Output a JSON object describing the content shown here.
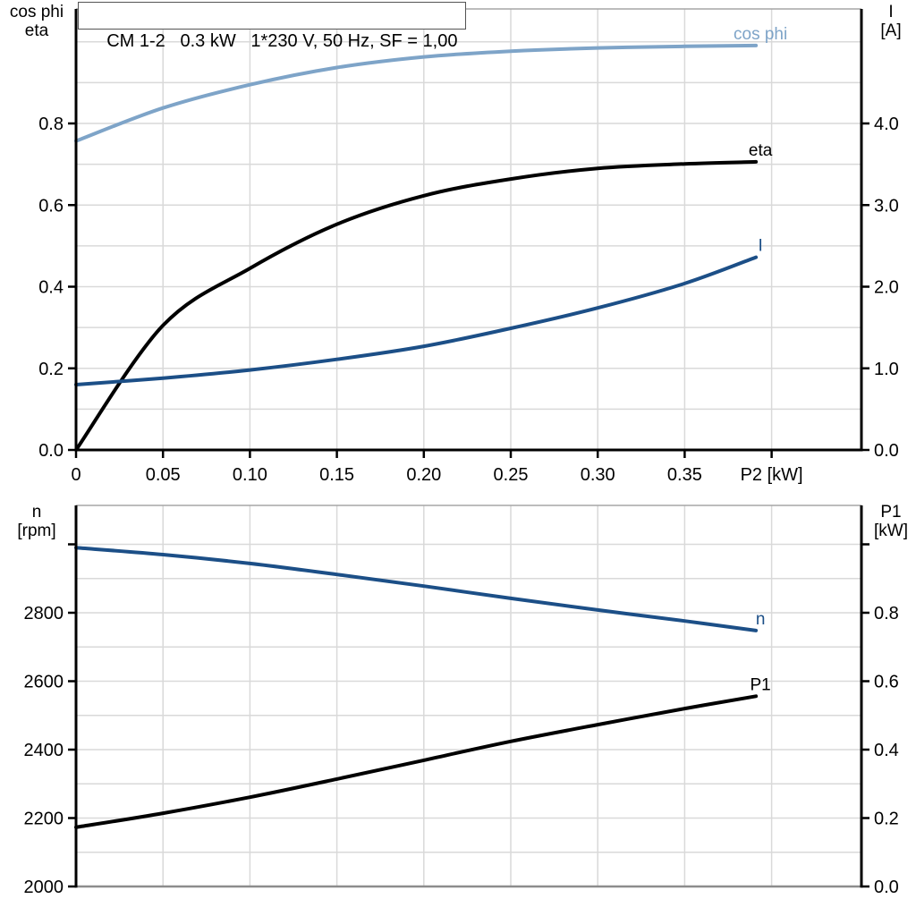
{
  "title_box": {
    "text": "CM 1-2   0.3 kW   1*230 V, 50 Hz, SF = 1,00"
  },
  "colors": {
    "dark_blue": "#1c4f87",
    "light_blue": "#7ea4c8",
    "black": "#000000",
    "grid": "#d9d9d9",
    "frame_gray": "#a6a6a6",
    "bottom_axis_gray": "#8c8c8c"
  },
  "chart_data": [
    {
      "type": "line",
      "title": "CM 1-2   0.3 kW   1*230 V, 50 Hz, SF = 1,00",
      "xlabel": "P2 [kW]",
      "ylabel_left_lines": [
        "cos phi",
        "eta"
      ],
      "ylabel_right_lines": [
        "I",
        "[A]"
      ],
      "xlim": [
        0,
        0.452
      ],
      "ylim_left": [
        0,
        1.08
      ],
      "ylim_right": [
        0,
        5.4
      ],
      "grid": true,
      "legend_position": "end-of-curve-labels",
      "x_ticks": [
        {
          "v": 0.0,
          "label": "0"
        },
        {
          "v": 0.05,
          "label": "0.05"
        },
        {
          "v": 0.1,
          "label": "0.10"
        },
        {
          "v": 0.15,
          "label": "0.15"
        },
        {
          "v": 0.2,
          "label": "0.20"
        },
        {
          "v": 0.25,
          "label": "0.25"
        },
        {
          "v": 0.3,
          "label": "0.30"
        },
        {
          "v": 0.35,
          "label": "0.35"
        },
        {
          "v": 0.4,
          "label": ""
        }
      ],
      "y_ticks_left": [
        {
          "v": 0.0,
          "label": "0.0"
        },
        {
          "v": 0.2,
          "label": "0.2"
        },
        {
          "v": 0.4,
          "label": "0.4"
        },
        {
          "v": 0.6,
          "label": "0.6"
        },
        {
          "v": 0.8,
          "label": "0.8"
        }
      ],
      "y_ticks_right": [
        {
          "v": 0.0,
          "label": "0.0"
        },
        {
          "v": 1.0,
          "label": "1.0"
        },
        {
          "v": 2.0,
          "label": "2.0"
        },
        {
          "v": 3.0,
          "label": "3.0"
        },
        {
          "v": 4.0,
          "label": "4.0"
        }
      ],
      "x": [
        0,
        0.05,
        0.1,
        0.15,
        0.2,
        0.25,
        0.3,
        0.35,
        0.391
      ],
      "series": [
        {
          "name": "cos phi",
          "axis": "left",
          "color": "light_blue",
          "values": [
            0.757,
            0.838,
            0.895,
            0.937,
            0.963,
            0.977,
            0.985,
            0.989,
            0.991
          ]
        },
        {
          "name": "eta",
          "axis": "left",
          "color": "black",
          "values": [
            0.0,
            0.305,
            0.445,
            0.553,
            0.623,
            0.664,
            0.69,
            0.701,
            0.706
          ]
        },
        {
          "name": "I",
          "axis": "right",
          "color": "dark_blue",
          "values": [
            0.8,
            0.88,
            0.98,
            1.11,
            1.27,
            1.49,
            1.74,
            2.04,
            2.36
          ]
        }
      ]
    },
    {
      "type": "line",
      "title": "",
      "xlabel": "",
      "ylabel_left_lines": [
        "n",
        "[rpm]"
      ],
      "ylabel_right_lines": [
        "P1",
        "[kW]"
      ],
      "xlim": [
        0,
        0.452
      ],
      "ylim_left": [
        2000,
        3114
      ],
      "ylim_right": [
        0,
        1.114
      ],
      "grid": true,
      "legend_position": "end-of-curve-labels",
      "y_ticks_left": [
        {
          "v": 2000,
          "label": "2000"
        },
        {
          "v": 2200,
          "label": "2200"
        },
        {
          "v": 2400,
          "label": "2400"
        },
        {
          "v": 2600,
          "label": "2600"
        },
        {
          "v": 2800,
          "label": "2800"
        },
        {
          "v": 3000,
          "label": ""
        }
      ],
      "y_ticks_right": [
        {
          "v": 0.0,
          "label": "0.0"
        },
        {
          "v": 0.2,
          "label": "0.2"
        },
        {
          "v": 0.4,
          "label": "0.4"
        },
        {
          "v": 0.6,
          "label": "0.6"
        },
        {
          "v": 0.8,
          "label": "0.8"
        },
        {
          "v": 1.0,
          "label": ""
        }
      ],
      "x": [
        0,
        0.05,
        0.1,
        0.15,
        0.2,
        0.25,
        0.3,
        0.35,
        0.391
      ],
      "series": [
        {
          "name": "n",
          "axis": "left",
          "color": "dark_blue",
          "values": [
            2990,
            2970,
            2944,
            2912,
            2878,
            2842,
            2808,
            2776,
            2748
          ]
        },
        {
          "name": "P1",
          "axis": "right",
          "color": "black",
          "values": [
            0.173,
            0.214,
            0.261,
            0.314,
            0.369,
            0.424,
            0.473,
            0.52,
            0.556
          ]
        }
      ]
    }
  ]
}
